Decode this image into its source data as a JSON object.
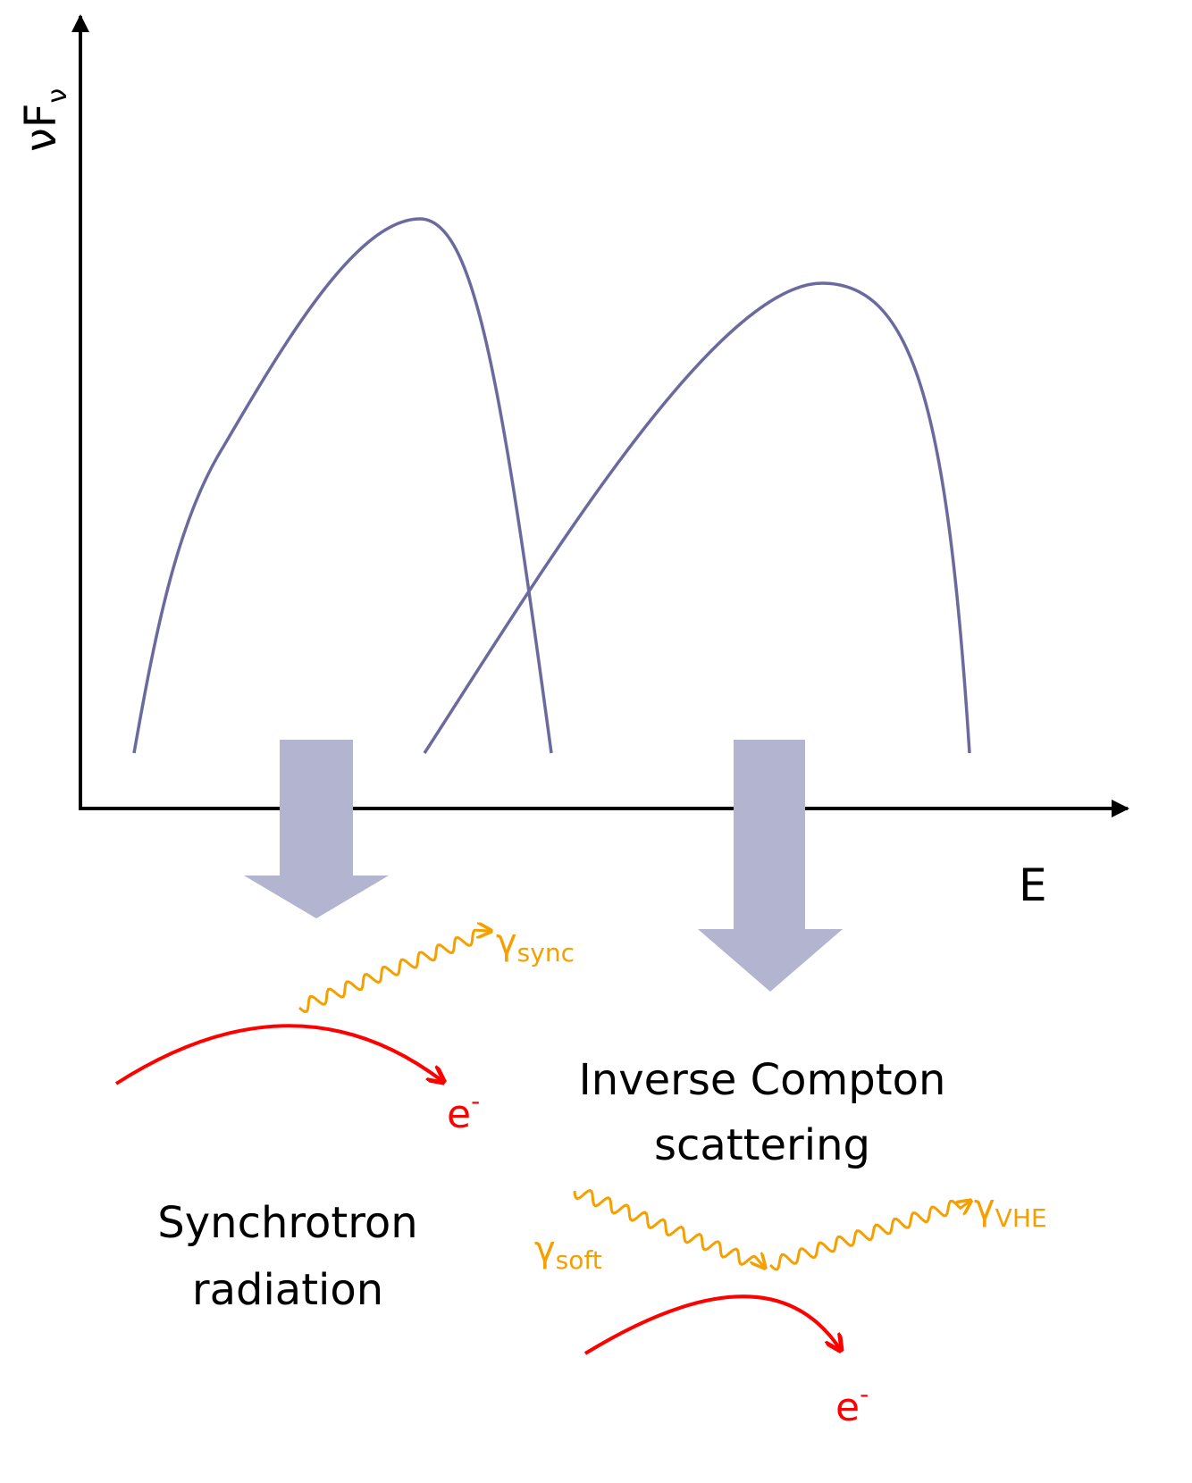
{
  "axes": {
    "y_label": {
      "text": "νF",
      "subscript": "ν"
    },
    "x_label": "E"
  },
  "synchrotron": {
    "photon": {
      "symbol": "γ",
      "subscript": "sync"
    },
    "electron": {
      "symbol": "e",
      "superscript": "-"
    },
    "caption": [
      "Synchrotron",
      "radiation"
    ]
  },
  "inverse_compton": {
    "caption": [
      "Inverse Compton",
      "scattering"
    ],
    "soft_photon": {
      "symbol": "γ",
      "subscript": "soft"
    },
    "vhe_photon": {
      "symbol": "γ",
      "subscript": "VHE"
    },
    "electron": {
      "symbol": "e",
      "superscript": "-"
    }
  }
}
